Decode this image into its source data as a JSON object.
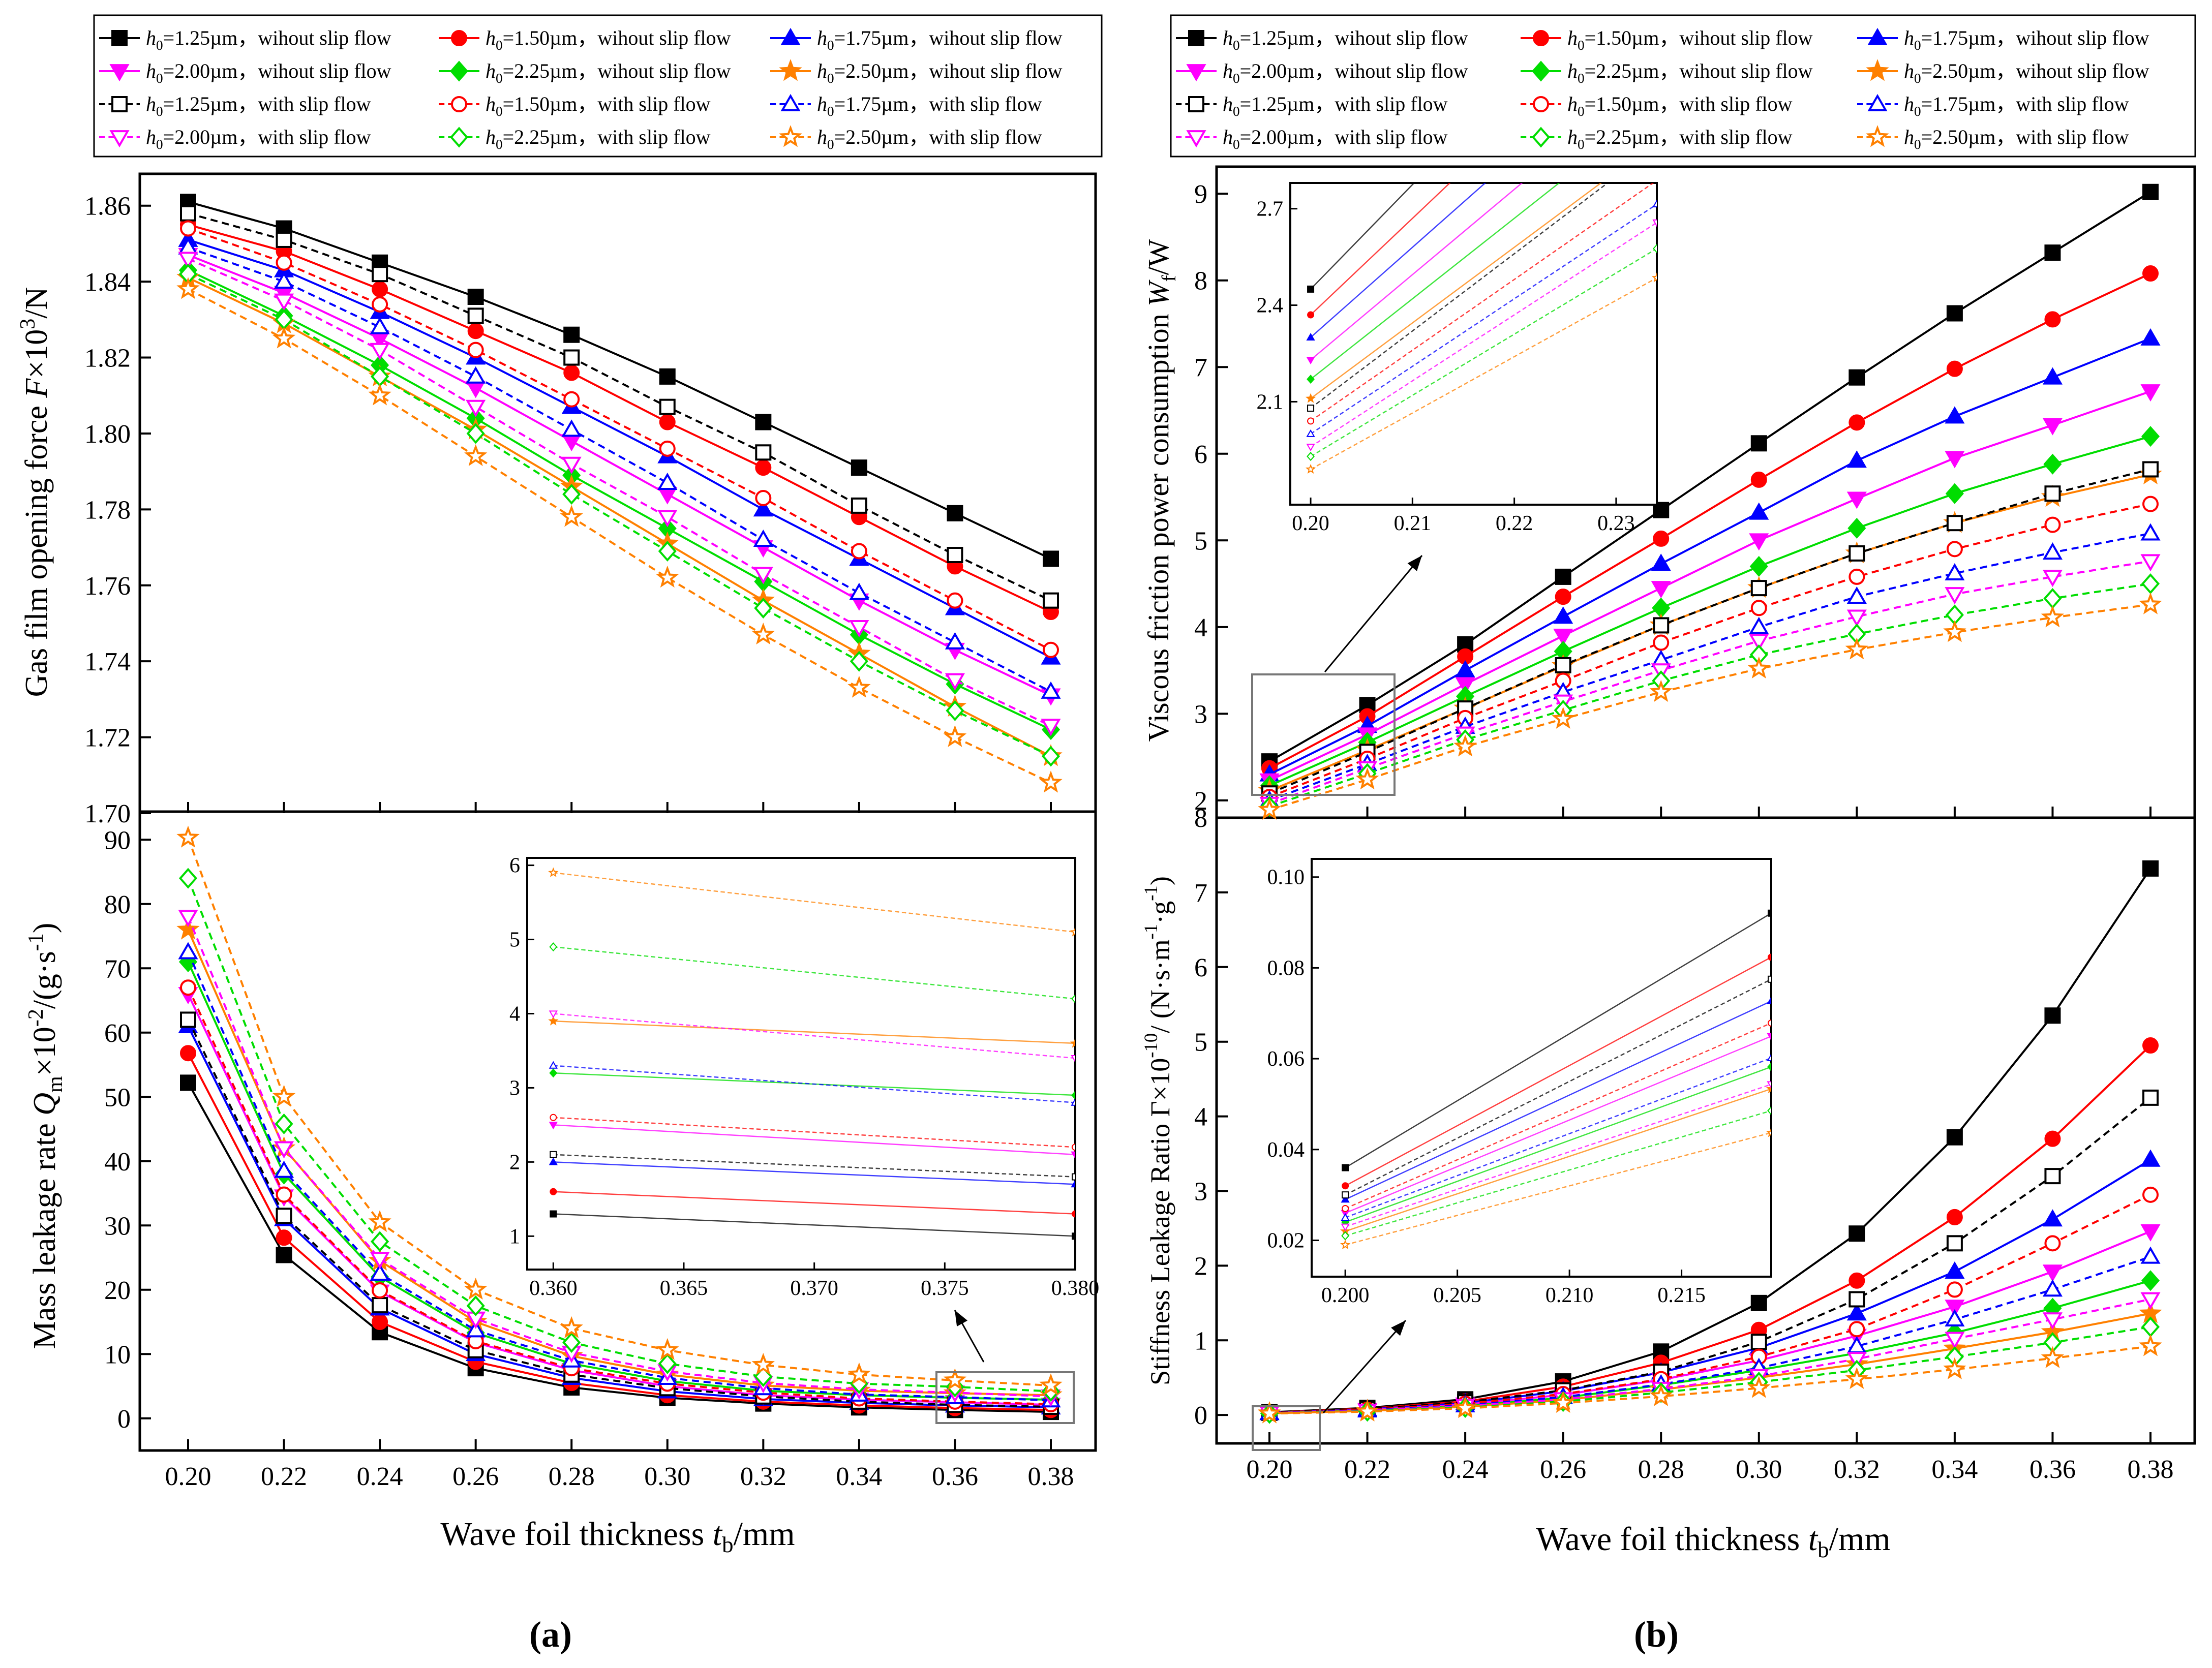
{
  "figure": {
    "panel_labels": [
      "(a)",
      "(b)"
    ]
  },
  "legend": {
    "entries": [
      {
        "h0": "=1.25µm",
        "mode": "wihout slip flow",
        "color": "#000000",
        "marker": "square",
        "filled": true,
        "dash": "solid"
      },
      {
        "h0": "=1.50µm",
        "mode": "wihout slip flow",
        "color": "#ff0000",
        "marker": "circle",
        "filled": true,
        "dash": "solid"
      },
      {
        "h0": "=1.75µm",
        "mode": "wihout slip flow",
        "color": "#0000ff",
        "marker": "triangle-up",
        "filled": true,
        "dash": "solid"
      },
      {
        "h0": "=2.00µm",
        "mode": "wihout slip flow",
        "color": "#ff00ff",
        "marker": "triangle-down",
        "filled": true,
        "dash": "solid"
      },
      {
        "h0": "=2.25µm",
        "mode": "wihout slip flow",
        "color": "#00dd00",
        "marker": "diamond",
        "filled": true,
        "dash": "solid"
      },
      {
        "h0": "=2.50µm",
        "mode": "wihout slip flow",
        "color": "#ff8000",
        "marker": "star",
        "filled": true,
        "dash": "solid"
      },
      {
        "h0": "=1.25µm",
        "mode": "with slip flow",
        "color": "#000000",
        "marker": "square",
        "filled": false,
        "dash": "dashed"
      },
      {
        "h0": "=1.50µm",
        "mode": "with slip flow",
        "color": "#ff0000",
        "marker": "circle",
        "filled": false,
        "dash": "dashed"
      },
      {
        "h0": "=1.75µm",
        "mode": "with slip flow",
        "color": "#0000ff",
        "marker": "triangle-up",
        "filled": false,
        "dash": "dashed"
      },
      {
        "h0": "=2.00µm",
        "mode": "with slip flow",
        "color": "#ff00ff",
        "marker": "triangle-down",
        "filled": false,
        "dash": "dashed"
      },
      {
        "h0": "=2.25µm",
        "mode": "with slip flow",
        "color": "#00dd00",
        "marker": "diamond",
        "filled": false,
        "dash": "dashed"
      },
      {
        "h0": "=2.50µm",
        "mode": "with slip flow",
        "color": "#ff8000",
        "marker": "star",
        "filled": false,
        "dash": "dashed"
      }
    ]
  },
  "chart_data": [
    {
      "id": "force",
      "type": "line",
      "panel": "a",
      "title": "",
      "xlabel": "Wave foil thickness t_b/mm",
      "ylabel": "Gas film opening force F×10^3/N",
      "x": [
        0.2,
        0.22,
        0.24,
        0.26,
        0.28,
        0.3,
        0.32,
        0.34,
        0.36,
        0.38
      ],
      "ylim": [
        1.7,
        1.87
      ],
      "yticks": [
        1.7,
        1.72,
        1.74,
        1.76,
        1.78,
        1.8,
        1.82,
        1.84,
        1.86
      ],
      "series": [
        {
          "name": "h0=1.25µm, wihout slip flow",
          "values": [
            1.861,
            1.854,
            1.845,
            1.836,
            1.826,
            1.815,
            1.803,
            1.791,
            1.779,
            1.767
          ]
        },
        {
          "name": "h0=1.50µm, wihout slip flow",
          "values": [
            1.855,
            1.848,
            1.838,
            1.827,
            1.816,
            1.803,
            1.791,
            1.778,
            1.765,
            1.753
          ]
        },
        {
          "name": "h0=1.75µm, wihout slip flow",
          "values": [
            1.851,
            1.843,
            1.832,
            1.82,
            1.807,
            1.794,
            1.78,
            1.767,
            1.754,
            1.741
          ]
        },
        {
          "name": "h0=2.00µm, wihout slip flow",
          "values": [
            1.847,
            1.837,
            1.825,
            1.812,
            1.798,
            1.784,
            1.77,
            1.756,
            1.743,
            1.731
          ]
        },
        {
          "name": "h0=2.25µm, wihout slip flow",
          "values": [
            1.843,
            1.831,
            1.818,
            1.804,
            1.789,
            1.775,
            1.761,
            1.747,
            1.734,
            1.722
          ]
        },
        {
          "name": "h0=2.50µm, wihout slip flow",
          "values": [
            1.841,
            1.829,
            1.815,
            1.801,
            1.786,
            1.771,
            1.756,
            1.742,
            1.728,
            1.715
          ]
        },
        {
          "name": "h0=1.25µm, with slip flow",
          "values": [
            1.858,
            1.851,
            1.842,
            1.831,
            1.82,
            1.807,
            1.795,
            1.781,
            1.768,
            1.756
          ]
        },
        {
          "name": "h0=1.50µm, with slip flow",
          "values": [
            1.854,
            1.845,
            1.834,
            1.822,
            1.809,
            1.796,
            1.783,
            1.769,
            1.756,
            1.743
          ]
        },
        {
          "name": "h0=1.75µm, with slip flow",
          "values": [
            1.849,
            1.84,
            1.828,
            1.815,
            1.801,
            1.787,
            1.772,
            1.758,
            1.745,
            1.732
          ]
        },
        {
          "name": "h0=2.00µm, with slip flow",
          "values": [
            1.846,
            1.835,
            1.822,
            1.807,
            1.792,
            1.778,
            1.763,
            1.749,
            1.735,
            1.723
          ]
        },
        {
          "name": "h0=2.25µm, with slip flow",
          "values": [
            1.842,
            1.83,
            1.815,
            1.8,
            1.784,
            1.769,
            1.754,
            1.74,
            1.727,
            1.715
          ]
        },
        {
          "name": "h0=2.50µm, with slip flow",
          "values": [
            1.838,
            1.825,
            1.81,
            1.794,
            1.778,
            1.762,
            1.747,
            1.733,
            1.72,
            1.708
          ]
        }
      ]
    },
    {
      "id": "leakage",
      "type": "line",
      "panel": "a",
      "title": "",
      "xlabel": "Wave foil thickness t_b/mm",
      "ylabel": "Mass leakage rate Q_m×10^-2/(g·s^-1)",
      "x": [
        0.2,
        0.22,
        0.24,
        0.26,
        0.28,
        0.3,
        0.32,
        0.34,
        0.36,
        0.38
      ],
      "xticks": [
        "0.20",
        "0.22",
        "0.24",
        "0.26",
        "0.28",
        "0.30",
        "0.32",
        "0.34",
        "0.36",
        "0.38"
      ],
      "ylim": [
        -5,
        95
      ],
      "yticks": [
        0,
        10,
        20,
        30,
        40,
        50,
        60,
        70,
        80,
        90
      ],
      "series": [
        {
          "name": "h0=1.25µm, wihout slip flow",
          "values": [
            52.2,
            25.4,
            13.4,
            7.8,
            4.8,
            3.2,
            2.3,
            1.7,
            1.3,
            1.0
          ]
        },
        {
          "name": "h0=1.50µm, wihout slip flow",
          "values": [
            56.8,
            28.1,
            15.0,
            8.8,
            5.5,
            3.6,
            2.6,
            2.0,
            1.6,
            1.3
          ]
        },
        {
          "name": "h0=1.75µm, wihout slip flow",
          "values": [
            61.0,
            31.0,
            17.1,
            10.0,
            6.3,
            4.2,
            3.0,
            2.4,
            2.0,
            1.7
          ]
        },
        {
          "name": "h0=2.00µm, wihout slip flow",
          "values": [
            66.0,
            34.5,
            19.7,
            11.8,
            7.5,
            5.0,
            3.6,
            2.9,
            2.5,
            2.1
          ]
        },
        {
          "name": "h0=2.25µm, wihout slip flow",
          "values": [
            71.0,
            38.0,
            22.0,
            13.3,
            8.5,
            5.8,
            4.3,
            3.6,
            3.2,
            2.9
          ]
        },
        {
          "name": "h0=2.50µm, wihout slip flow",
          "values": [
            76.0,
            42.0,
            24.5,
            15.0,
            9.7,
            6.8,
            5.1,
            4.3,
            3.9,
            3.6
          ]
        },
        {
          "name": "h0=1.25µm, with slip flow",
          "values": [
            62.0,
            31.5,
            17.6,
            10.6,
            6.8,
            4.7,
            3.4,
            2.6,
            2.1,
            1.8
          ]
        },
        {
          "name": "h0=1.50µm, with slip flow",
          "values": [
            67.0,
            34.8,
            19.9,
            12.0,
            7.8,
            5.4,
            4.0,
            3.1,
            2.6,
            2.2
          ]
        },
        {
          "name": "h0=1.75µm, with slip flow",
          "values": [
            72.5,
            38.5,
            22.5,
            13.7,
            9.0,
            6.3,
            4.7,
            3.7,
            3.3,
            2.8
          ]
        },
        {
          "name": "h0=2.00µm, with slip flow",
          "values": [
            78.0,
            42.0,
            24.8,
            15.5,
            10.2,
            7.3,
            5.5,
            4.5,
            4.0,
            3.4
          ]
        },
        {
          "name": "h0=2.25µm, with slip flow",
          "values": [
            84.0,
            45.8,
            27.5,
            17.5,
            11.8,
            8.5,
            6.5,
            5.4,
            4.9,
            4.2
          ]
        },
        {
          "name": "h0=2.50µm, with slip flow",
          "values": [
            90.3,
            50.0,
            30.5,
            20.0,
            14.0,
            10.6,
            8.3,
            6.8,
            5.9,
            5.1
          ]
        }
      ],
      "inset": {
        "xlim": [
          0.359,
          0.38
        ],
        "xticks": [
          "0.360",
          "0.365",
          "0.370",
          "0.375",
          "0.380"
        ],
        "ylim": [
          0.55,
          6.1
        ],
        "yticks": [
          "1",
          "2",
          "3",
          "4",
          "5",
          "6"
        ]
      }
    },
    {
      "id": "power",
      "type": "line",
      "panel": "b",
      "title": "",
      "xlabel": "",
      "ylabel": "Viscous friction power consumption W_f/W",
      "x": [
        0.2,
        0.22,
        0.24,
        0.26,
        0.28,
        0.3,
        0.32,
        0.34,
        0.36,
        0.38
      ],
      "ylim": [
        1.8,
        9.3
      ],
      "yticks": [
        2,
        3,
        4,
        5,
        6,
        7,
        8,
        9
      ],
      "series": [
        {
          "name": "h0=1.25µm, wihout slip flow",
          "values": [
            2.45,
            3.1,
            3.8,
            4.58,
            5.35,
            6.12,
            6.88,
            7.62,
            8.32,
            9.02
          ]
        },
        {
          "name": "h0=1.50µm, wihout slip flow",
          "values": [
            2.37,
            2.97,
            3.66,
            4.35,
            5.02,
            5.7,
            6.36,
            6.98,
            7.55,
            8.08
          ]
        },
        {
          "name": "h0=1.75µm, wihout slip flow",
          "values": [
            2.3,
            2.86,
            3.5,
            4.12,
            4.73,
            5.32,
            5.92,
            6.43,
            6.88,
            7.33
          ]
        },
        {
          "name": "h0=2.00µm, wihout slip flow",
          "values": [
            2.23,
            2.76,
            3.34,
            3.9,
            4.45,
            5.0,
            5.48,
            5.95,
            6.33,
            6.72
          ]
        },
        {
          "name": "h0=2.25µm, wihout slip flow",
          "values": [
            2.17,
            2.67,
            3.2,
            3.72,
            4.22,
            4.7,
            5.14,
            5.54,
            5.88,
            6.2
          ]
        },
        {
          "name": "h0=2.50µm, wihout slip flow",
          "values": [
            2.11,
            2.58,
            3.06,
            3.55,
            4.02,
            4.45,
            4.85,
            5.2,
            5.5,
            5.76
          ]
        },
        {
          "name": "h0=1.25µm, with slip flow",
          "values": [
            2.08,
            2.56,
            3.06,
            3.56,
            4.02,
            4.45,
            4.85,
            5.2,
            5.54,
            5.82
          ]
        },
        {
          "name": "h0=1.50µm, with slip flow",
          "values": [
            2.04,
            2.48,
            2.95,
            3.38,
            3.82,
            4.22,
            4.58,
            4.9,
            5.18,
            5.42
          ]
        },
        {
          "name": "h0=1.75µm, with slip flow",
          "values": [
            2.0,
            2.42,
            2.85,
            3.25,
            3.62,
            4.0,
            4.35,
            4.62,
            4.86,
            5.08
          ]
        },
        {
          "name": "h0=2.00µm, with slip flow",
          "values": [
            1.96,
            2.37,
            2.77,
            3.14,
            3.5,
            3.84,
            4.12,
            4.38,
            4.58,
            4.76
          ]
        },
        {
          "name": "h0=2.25µm, with slip flow",
          "values": [
            1.93,
            2.31,
            2.7,
            3.04,
            3.38,
            3.68,
            3.92,
            4.14,
            4.33,
            4.5
          ]
        },
        {
          "name": "h0=2.50µm, with slip flow",
          "values": [
            1.89,
            2.24,
            2.62,
            2.94,
            3.25,
            3.52,
            3.74,
            3.94,
            4.11,
            4.26
          ]
        }
      ],
      "inset": {
        "xlim": [
          0.198,
          0.234
        ],
        "xticks": [
          "0.20",
          "0.21",
          "0.22",
          "0.23"
        ],
        "ylim": [
          1.78,
          2.78
        ],
        "yticks": [
          "2.1",
          "2.4",
          "2.7"
        ]
      }
    },
    {
      "id": "stiffness",
      "type": "line",
      "panel": "b",
      "title": "",
      "xlabel": "Wave foil thickness t_b/mm",
      "ylabel": "Stiffness Leakage Ratio Γ×10^-10/ (N·s·m^-1·g^-1)",
      "x": [
        0.2,
        0.22,
        0.24,
        0.26,
        0.28,
        0.3,
        0.32,
        0.34,
        0.36,
        0.38
      ],
      "xticks": [
        "0.20",
        "0.22",
        "0.24",
        "0.26",
        "0.28",
        "0.30",
        "0.32",
        "0.34",
        "0.36",
        "0.38"
      ],
      "ylim": [
        -0.38,
        8.0
      ],
      "yticks": [
        0,
        1,
        2,
        3,
        4,
        5,
        6,
        7,
        8
      ],
      "series": [
        {
          "name": "h0=1.25µm, wihout slip flow",
          "values": [
            0.036,
            0.095,
            0.21,
            0.45,
            0.85,
            1.5,
            2.43,
            3.72,
            5.35,
            7.32
          ]
        },
        {
          "name": "h0=1.50µm, wihout slip flow",
          "values": [
            0.032,
            0.085,
            0.18,
            0.38,
            0.7,
            1.14,
            1.8,
            2.65,
            3.7,
            4.95
          ]
        },
        {
          "name": "h0=1.75µm, wihout slip flow",
          "values": [
            0.029,
            0.075,
            0.16,
            0.32,
            0.57,
            0.9,
            1.36,
            1.92,
            2.62,
            3.42
          ]
        },
        {
          "name": "h0=2.00µm, wihout slip flow",
          "values": [
            0.026,
            0.067,
            0.14,
            0.27,
            0.47,
            0.73,
            1.06,
            1.45,
            1.92,
            2.46
          ]
        },
        {
          "name": "h0=2.25µm, wihout slip flow",
          "values": [
            0.024,
            0.06,
            0.12,
            0.23,
            0.4,
            0.6,
            0.83,
            1.1,
            1.43,
            1.8
          ]
        },
        {
          "name": "h0=2.50µm, wihout slip flow",
          "values": [
            0.022,
            0.055,
            0.11,
            0.2,
            0.34,
            0.5,
            0.68,
            0.89,
            1.11,
            1.36
          ]
        },
        {
          "name": "h0=1.25µm, with slip flow",
          "values": [
            0.03,
            0.08,
            0.17,
            0.33,
            0.58,
            0.98,
            1.55,
            2.3,
            3.2,
            4.25
          ]
        },
        {
          "name": "h0=1.50µm, with slip flow",
          "values": [
            0.027,
            0.07,
            0.15,
            0.28,
            0.48,
            0.78,
            1.15,
            1.68,
            2.3,
            2.95
          ]
        },
        {
          "name": "h0=1.75µm, with slip flow",
          "values": [
            0.025,
            0.062,
            0.13,
            0.24,
            0.41,
            0.63,
            0.92,
            1.28,
            1.68,
            2.12
          ]
        },
        {
          "name": "h0=2.00µm, with slip flow",
          "values": [
            0.023,
            0.056,
            0.12,
            0.21,
            0.35,
            0.52,
            0.75,
            1.02,
            1.28,
            1.55
          ]
        },
        {
          "name": "h0=2.25µm, with slip flow",
          "values": [
            0.021,
            0.05,
            0.1,
            0.18,
            0.3,
            0.44,
            0.6,
            0.78,
            0.97,
            1.18
          ]
        },
        {
          "name": "h0=2.50µm, with slip flow",
          "values": [
            0.019,
            0.045,
            0.09,
            0.16,
            0.25,
            0.36,
            0.48,
            0.61,
            0.76,
            0.92
          ]
        }
      ],
      "inset": {
        "xlim": [
          0.1985,
          0.219
        ],
        "xticks": [
          "0.200",
          "0.205",
          "0.210",
          "0.215"
        ],
        "ylim": [
          0.012,
          0.104
        ],
        "yticks": [
          "0.02",
          "0.04",
          "0.06",
          "0.08",
          "0.10"
        ]
      }
    }
  ]
}
